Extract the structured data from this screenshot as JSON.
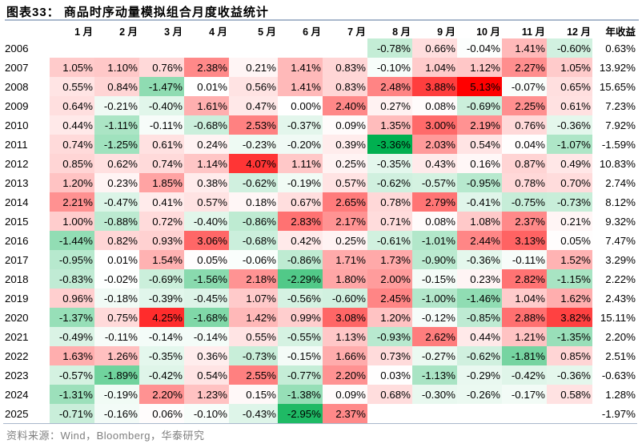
{
  "title": "图表33：  商品时序动量模拟组合月度收益统计",
  "source": "资料来源：Wind，Bloomberg，华泰研究",
  "colors": {
    "max_positive": "#ff0000",
    "min_negative": "#00b050",
    "neutral": "#ffffff",
    "rule": "#a9b8cc"
  },
  "chart_data": {
    "type": "heatmap",
    "title": "商品时序动量模拟组合月度收益统计",
    "columns": [
      "1 月",
      "2 月",
      "3 月",
      "4 月",
      "5 月",
      "6 月",
      "7 月",
      "8 月",
      "9 月",
      "10 月",
      "11 月",
      "12 月",
      "年收益"
    ],
    "unit": "%",
    "rows": [
      {
        "year": "2006",
        "months": [
          null,
          null,
          null,
          null,
          null,
          null,
          null,
          -0.78,
          0.66,
          -0.04,
          1.41,
          -0.6
        ],
        "annual": 0.63
      },
      {
        "year": "2007",
        "months": [
          1.05,
          1.1,
          0.76,
          2.38,
          0.21,
          1.41,
          0.83,
          -0.1,
          1.04,
          1.12,
          2.27,
          1.05
        ],
        "annual": 13.92
      },
      {
        "year": "2008",
        "months": [
          0.55,
          0.84,
          -1.47,
          0.01,
          0.56,
          1.41,
          0.83,
          2.48,
          3.88,
          5.13,
          -0.07,
          0.65
        ],
        "annual": 15.65
      },
      {
        "year": "2009",
        "months": [
          0.64,
          -0.21,
          -0.4,
          1.61,
          0.47,
          0.0,
          2.4,
          0.27,
          0.08,
          -0.69,
          2.25,
          0.61
        ],
        "annual": 7.23
      },
      {
        "year": "2010",
        "months": [
          0.44,
          -1.11,
          -0.11,
          -0.68,
          2.53,
          -0.37,
          0.09,
          1.35,
          3.0,
          2.19,
          0.76,
          -0.36
        ],
        "annual": 7.92
      },
      {
        "year": "2011",
        "months": [
          0.74,
          -1.25,
          0.61,
          0.24,
          -0.23,
          -0.2,
          0.39,
          -3.36,
          2.03,
          0.54,
          0.04,
          -1.07
        ],
        "annual": -1.59
      },
      {
        "year": "2012",
        "months": [
          0.85,
          0.62,
          0.74,
          1.14,
          4.07,
          1.11,
          0.25,
          -0.35,
          0.43,
          0.16,
          0.87,
          0.49
        ],
        "annual": 10.83
      },
      {
        "year": "2013",
        "months": [
          1.2,
          0.23,
          1.85,
          0.38,
          -0.62,
          -0.19,
          0.57,
          -0.62,
          -0.57,
          -0.95,
          0.78,
          0.7
        ],
        "annual": 2.74
      },
      {
        "year": "2014",
        "months": [
          2.21,
          -0.47,
          0.41,
          0.57,
          0.18,
          0.67,
          2.65,
          0.78,
          2.79,
          -0.41,
          -0.75,
          -0.73
        ],
        "annual": 8.12
      },
      {
        "year": "2015",
        "months": [
          1.0,
          -0.88,
          0.72,
          -0.4,
          -0.86,
          2.83,
          2.17,
          0.71,
          0.08,
          1.08,
          2.37,
          0.21
        ],
        "annual": 9.32
      },
      {
        "year": "2016",
        "months": [
          -1.44,
          0.82,
          0.93,
          3.06,
          -0.68,
          0.42,
          0.25,
          -0.61,
          -1.01,
          2.44,
          3.13,
          0.05
        ],
        "annual": 7.47
      },
      {
        "year": "2017",
        "months": [
          -0.95,
          0.01,
          1.54,
          0.05,
          -0.06,
          -0.86,
          1.71,
          1.73,
          -0.9,
          -0.36,
          -0.11,
          1.52
        ],
        "annual": 3.29
      },
      {
        "year": "2018",
        "months": [
          -0.83,
          -0.02,
          -0.69,
          -1.56,
          2.18,
          -2.29,
          1.8,
          2.0,
          -0.15,
          0.23,
          2.82,
          -1.15
        ],
        "annual": 2.22
      },
      {
        "year": "2019",
        "months": [
          0.96,
          -0.18,
          -0.39,
          -0.45,
          1.07,
          -0.56,
          -0.6,
          2.45,
          -1.0,
          -1.46,
          1.04,
          1.62
        ],
        "annual": 2.43
      },
      {
        "year": "2020",
        "months": [
          -1.37,
          0.75,
          4.25,
          -1.68,
          1.42,
          0.99,
          3.08,
          1.2,
          -0.12,
          -0.85,
          2.88,
          3.82
        ],
        "annual": 15.11
      },
      {
        "year": "2021",
        "months": [
          -0.49,
          -0.11,
          -0.14,
          -0.14,
          0.55,
          -0.55,
          1.13,
          -0.93,
          2.62,
          0.44,
          1.21,
          -1.35
        ],
        "annual": 2.2
      },
      {
        "year": "2022",
        "months": [
          1.63,
          1.26,
          -0.35,
          0.36,
          -0.73,
          -0.15,
          1.66,
          0.73,
          -0.27,
          -0.62,
          -1.81,
          0.85
        ],
        "annual": 2.51
      },
      {
        "year": "2023",
        "months": [
          -0.57,
          -1.89,
          -0.42,
          0.54,
          2.55,
          -0.77,
          2.2,
          0.03,
          -1.13,
          -0.29,
          -0.42,
          -0.36
        ],
        "annual": -0.63
      },
      {
        "year": "2024",
        "months": [
          -1.31,
          -0.19,
          2.2,
          1.23,
          0.15,
          -1.38,
          0.09,
          0.68,
          -0.3,
          -0.26,
          -0.17,
          0.58
        ],
        "annual": 1.28
      },
      {
        "year": "2025",
        "months": [
          -0.71,
          -0.16,
          0.06,
          -0.1,
          -0.43,
          -2.95,
          2.37,
          null,
          null,
          null,
          null,
          null
        ],
        "annual": -1.97
      }
    ]
  }
}
